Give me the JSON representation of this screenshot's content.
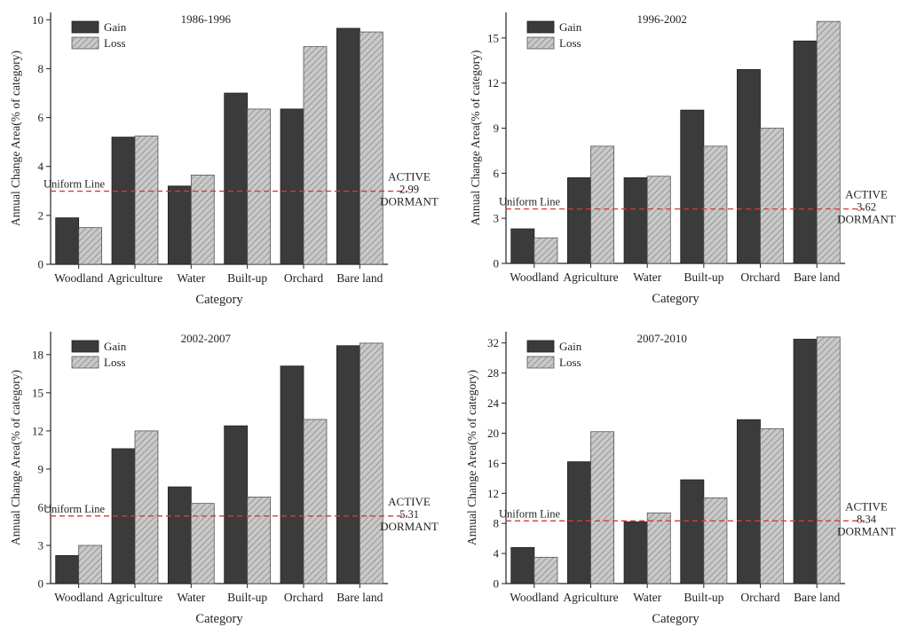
{
  "colors": {
    "gain": "#3b3b3b",
    "loss_bg": "#c9c9c9",
    "loss_hatch": "#8a8a8a",
    "uniform_line": "#d9383a",
    "axis": "#222222"
  },
  "shared": {
    "legend_gain": "Gain",
    "legend_loss": "Loss",
    "uniform_label": "Uniform Line",
    "active_label": "ACTIVE",
    "dormant_label": "DORMANT"
  },
  "chart_data": [
    {
      "type": "bar",
      "title": "1986-1996",
      "xlabel": "Category",
      "ylabel": "Annual Change Area(% of category)",
      "categories": [
        "Woodland",
        "Agriculture",
        "Water",
        "Built-up",
        "Orchard",
        "Bare land"
      ],
      "series": [
        {
          "name": "Gain",
          "values": [
            1.9,
            5.2,
            3.2,
            7.0,
            6.35,
            9.65
          ]
        },
        {
          "name": "Loss",
          "values": [
            1.5,
            5.25,
            3.65,
            6.35,
            8.9,
            9.5
          ]
        }
      ],
      "ylim": [
        0,
        10.3
      ],
      "yticks": [
        0,
        2,
        4,
        6,
        8,
        10
      ],
      "uniform_value": 2.99,
      "uniform_text": "2.99"
    },
    {
      "type": "bar",
      "title": "1996-2002",
      "xlabel": "Category",
      "ylabel": "Annual Change Area(% of category)",
      "categories": [
        "Woodland",
        "Agriculture",
        "Water",
        "Built-up",
        "Orchard",
        "Bare land"
      ],
      "series": [
        {
          "name": "Gain",
          "values": [
            2.3,
            5.7,
            5.7,
            10.2,
            12.9,
            14.8
          ]
        },
        {
          "name": "Loss",
          "values": [
            1.7,
            7.8,
            5.8,
            7.8,
            9.0,
            16.1
          ]
        }
      ],
      "ylim": [
        0,
        16.7
      ],
      "yticks": [
        0,
        3,
        6,
        9,
        12,
        15
      ],
      "uniform_value": 3.62,
      "uniform_text": "3.62"
    },
    {
      "type": "bar",
      "title": "2002-2007",
      "xlabel": "Category",
      "ylabel": "Annual Change Area(% of category)",
      "categories": [
        "Woodland",
        "Agriculture",
        "Water",
        "Built-up",
        "Orchard",
        "Bare land"
      ],
      "series": [
        {
          "name": "Gain",
          "values": [
            2.2,
            10.6,
            7.6,
            12.4,
            17.1,
            18.7
          ]
        },
        {
          "name": "Loss",
          "values": [
            3.0,
            12.0,
            6.3,
            6.8,
            12.9,
            18.9
          ]
        }
      ],
      "ylim": [
        0,
        19.8
      ],
      "yticks": [
        0,
        3,
        6,
        9,
        12,
        15,
        18
      ],
      "uniform_value": 5.31,
      "uniform_text": "5.31"
    },
    {
      "type": "bar",
      "title": "2007-2010",
      "xlabel": "Category",
      "ylabel": "Annual Change Area(% of category)",
      "categories": [
        "Woodland",
        "Agriculture",
        "Water",
        "Built-up",
        "Orchard",
        "Bare land"
      ],
      "series": [
        {
          "name": "Gain",
          "values": [
            4.8,
            16.2,
            8.2,
            13.8,
            21.8,
            32.5
          ]
        },
        {
          "name": "Loss",
          "values": [
            3.5,
            20.2,
            9.4,
            11.4,
            20.6,
            32.8
          ]
        }
      ],
      "ylim": [
        0,
        33.5
      ],
      "yticks": [
        0,
        4,
        8,
        12,
        16,
        20,
        24,
        28,
        32
      ],
      "uniform_value": 8.34,
      "uniform_text": "8.34"
    }
  ]
}
